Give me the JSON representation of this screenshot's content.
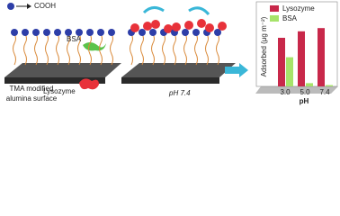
{
  "legend_label": "COOH",
  "left_panel": {
    "label_bsa": "BSA",
    "label_lysozyme": "Lysozyme",
    "surface_label": [
      "TMA modified",
      "alumina surface"
    ]
  },
  "middle_panel": {
    "ph_label": "pH 7.4"
  },
  "chart": {
    "type": "bar",
    "y_label": "Adsorbed (μg m⁻²)",
    "x_label": "pH",
    "categories": [
      "3.0",
      "5.0",
      "7.4"
    ],
    "series": [
      {
        "name": "Lysozyme",
        "color": "#c8284a",
        "values": [
          0.75,
          0.85,
          0.9
        ]
      },
      {
        "name": "BSA",
        "color": "#a6e36a",
        "values": [
          0.45,
          0.05,
          0.02
        ]
      }
    ],
    "ylim": [
      0,
      1
    ]
  }
}
